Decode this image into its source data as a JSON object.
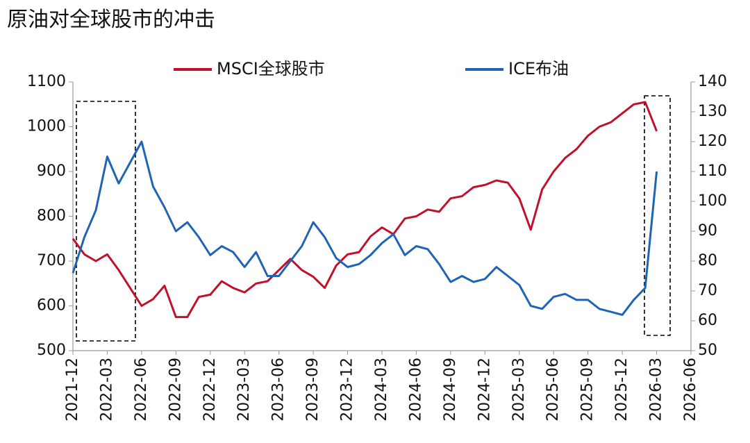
{
  "chart_data": {
    "type": "line",
    "title": "原油对全球股市的冲击",
    "x": [
      "2021-12",
      "2022-01",
      "2022-02",
      "2022-03",
      "2022-04",
      "2022-05",
      "2022-06",
      "2022-07",
      "2022-08",
      "2022-09",
      "2022-10",
      "2022-11",
      "2022-12",
      "2023-01",
      "2023-02",
      "2023-03",
      "2023-04",
      "2023-05",
      "2023-06",
      "2023-07",
      "2023-08",
      "2023-09",
      "2023-10",
      "2023-11",
      "2023-12",
      "2024-01",
      "2024-02",
      "2024-03",
      "2024-04",
      "2024-05",
      "2024-06",
      "2024-07",
      "2024-08",
      "2024-09",
      "2024-10",
      "2024-11",
      "2024-12",
      "2025-01",
      "2025-02",
      "2025-03",
      "2025-04",
      "2025-05",
      "2025-06",
      "2025-07",
      "2025-08",
      "2025-09",
      "2025-10",
      "2025-11",
      "2025-12",
      "2026-01",
      "2026-02",
      "2026-03"
    ],
    "series": [
      {
        "name": "MSCI全球股市",
        "color": "#c0102c",
        "values": [
          750,
          715,
          700,
          715,
          680,
          640,
          600,
          615,
          645,
          575,
          575,
          620,
          625,
          655,
          640,
          630,
          650,
          655,
          680,
          705,
          680,
          665,
          640,
          690,
          715,
          720,
          755,
          775,
          760,
          795,
          800,
          815,
          810,
          840,
          845,
          865,
          870,
          880,
          875,
          840,
          770,
          860,
          900,
          930,
          950,
          980,
          1000,
          1010,
          1030,
          1050,
          1055,
          990
        ]
      },
      {
        "name": "ICE布油",
        "color": "#1f64b4",
        "axis": "y2",
        "values": [
          76,
          88,
          97,
          115,
          106,
          113,
          120,
          105,
          98,
          90,
          93,
          88,
          82,
          85,
          83,
          78,
          83,
          75,
          75,
          80,
          85,
          93,
          88,
          81,
          78,
          79,
          82,
          86,
          89,
          82,
          85,
          84,
          79,
          73,
          75,
          73,
          74,
          78,
          75,
          72,
          65,
          64,
          68,
          69,
          67,
          67,
          64,
          63,
          62,
          67,
          71,
          110
        ]
      }
    ],
    "xlim": [
      "2021-12",
      "2026-06"
    ],
    "xticks": [
      "2021-12",
      "2022-03",
      "2022-06",
      "2022-09",
      "2022-12",
      "2023-03",
      "2023-06",
      "2023-09",
      "2023-12",
      "2024-03",
      "2024-06",
      "2024-09",
      "2024-12",
      "2025-03",
      "2025-06",
      "2025-09",
      "2025-12",
      "2026-03",
      "2026-06"
    ],
    "ylim": [
      500,
      1100
    ],
    "yticks": [
      500,
      600,
      700,
      800,
      900,
      1000,
      1100
    ],
    "y2lim": [
      50,
      140
    ],
    "y2ticks": [
      50,
      60,
      70,
      80,
      90,
      100,
      110,
      120,
      130,
      140
    ],
    "legend": "top"
  }
}
